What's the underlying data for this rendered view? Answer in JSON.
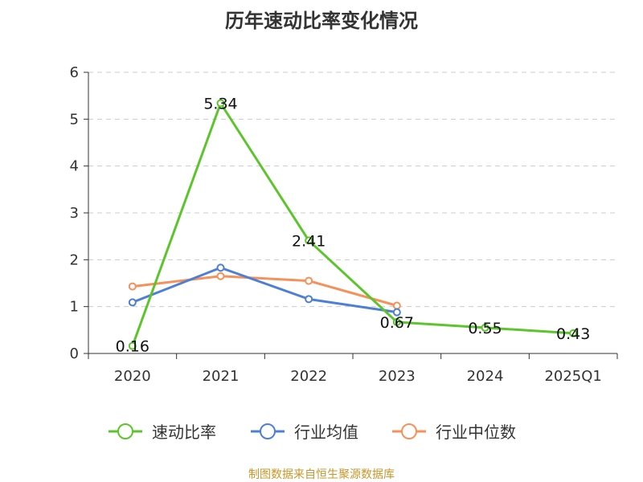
{
  "chart_data": {
    "type": "line",
    "title": "历年速动比率变化情况",
    "categories": [
      "2020",
      "2021",
      "2022",
      "2023",
      "2024",
      "2025Q1"
    ],
    "yticks": [
      "0",
      "1",
      "2",
      "3",
      "4",
      "5",
      "6"
    ],
    "ylim": [
      0,
      6
    ],
    "grid": true,
    "legend_position": "bottom",
    "series": [
      {
        "name": "速动比率",
        "color": "#5cc52b",
        "values": [
          0.16,
          5.34,
          2.41,
          0.67,
          0.55,
          0.43
        ],
        "labels": [
          "0.16",
          "5.34",
          "2.41",
          "0.67",
          "0.55",
          "0.43"
        ]
      },
      {
        "name": "行业均值",
        "color": "#4e7fd6",
        "values": [
          1.09,
          1.83,
          1.16,
          0.88,
          null,
          null
        ]
      },
      {
        "name": "行业中位数",
        "color": "#f5915a",
        "values": [
          1.43,
          1.65,
          1.55,
          1.02,
          null,
          null
        ]
      }
    ]
  },
  "source": "制图数据来自恒生聚源数据库"
}
